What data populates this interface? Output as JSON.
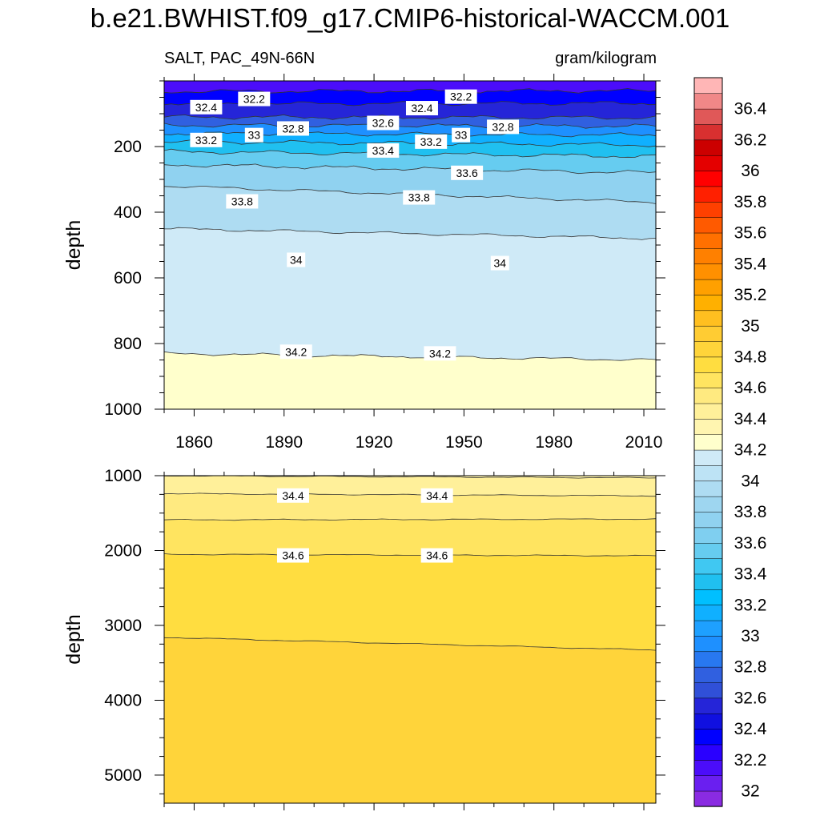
{
  "figure": {
    "title": "b.e21.BWHIST.f09_g17.CMIP6-historical-WACCM.001",
    "left_string": "SALT, PAC_49N-66N",
    "right_string": "gram/kilogram"
  },
  "chart_data": [
    {
      "type": "contour",
      "panel": "upper",
      "variable": "SALT",
      "units": "gram/kilogram",
      "x": {
        "range": [
          1850,
          2014
        ],
        "ticks": [
          1860,
          1890,
          1920,
          1950,
          1980,
          2010
        ]
      },
      "y": {
        "label": "depth",
        "range": [
          0,
          1000
        ],
        "reversed": true,
        "ticks": [
          200,
          400,
          600,
          800,
          1000
        ]
      },
      "contour_lines": [
        {
          "level": 32.2,
          "depth_start": 32,
          "depth_end": 30
        },
        {
          "level": 32.4,
          "depth_start": 70,
          "depth_end": 68
        },
        {
          "level": 32.6,
          "depth_start": 110,
          "depth_end": 112
        },
        {
          "level": 32.8,
          "depth_start": 135,
          "depth_end": 138
        },
        {
          "level": 33.0,
          "depth_start": 160,
          "depth_end": 165
        },
        {
          "level": 33.2,
          "depth_start": 185,
          "depth_end": 195
        },
        {
          "level": 33.4,
          "depth_start": 215,
          "depth_end": 230
        },
        {
          "level": 33.6,
          "depth_start": 255,
          "depth_end": 280
        },
        {
          "level": 33.8,
          "depth_start": 320,
          "depth_end": 370
        },
        {
          "level": 34.0,
          "depth_start": 450,
          "depth_end": 480
        },
        {
          "level": 34.2,
          "depth_start": 830,
          "depth_end": 850
        }
      ],
      "contour_labels": [
        {
          "text": "32.2",
          "x": 1880,
          "depth": 55
        },
        {
          "text": "32.4",
          "x": 1864,
          "depth": 80
        },
        {
          "text": "32.2",
          "x": 1949,
          "depth": 48
        },
        {
          "text": "32.4",
          "x": 1936,
          "depth": 83
        },
        {
          "text": "32.6",
          "x": 1923,
          "depth": 128
        },
        {
          "text": "32.8",
          "x": 1893,
          "depth": 145
        },
        {
          "text": "32.8",
          "x": 1963,
          "depth": 140
        },
        {
          "text": "33",
          "x": 1880,
          "depth": 165
        },
        {
          "text": "33",
          "x": 1949,
          "depth": 165
        },
        {
          "text": "33.2",
          "x": 1864,
          "depth": 180
        },
        {
          "text": "33.2",
          "x": 1939,
          "depth": 185
        },
        {
          "text": "33.4",
          "x": 1923,
          "depth": 212
        },
        {
          "text": "33.6",
          "x": 1951,
          "depth": 280
        },
        {
          "text": "33.8",
          "x": 1876,
          "depth": 367
        },
        {
          "text": "33.8",
          "x": 1935,
          "depth": 355
        },
        {
          "text": "34",
          "x": 1894,
          "depth": 545
        },
        {
          "text": "34",
          "x": 1962,
          "depth": 555
        },
        {
          "text": "34.2",
          "x": 1894,
          "depth": 825
        },
        {
          "text": "34.2",
          "x": 1942,
          "depth": 830
        }
      ]
    },
    {
      "type": "contour",
      "panel": "lower",
      "variable": "SALT",
      "units": "gram/kilogram",
      "x": {
        "range": [
          1850,
          2014
        ],
        "ticks": [
          1860,
          1890,
          1920,
          1950,
          1980,
          2010
        ]
      },
      "y": {
        "label": "depth",
        "range": [
          1000,
          5375
        ],
        "reversed": true,
        "ticks": [
          1000,
          2000,
          3000,
          4000,
          5000
        ]
      },
      "contour_lines": [
        {
          "level": 34.4,
          "depth_start": 1000,
          "depth_end": 1030
        },
        {
          "level": 34.4,
          "depth_start": 1240,
          "depth_end": 1270
        },
        {
          "level": 34.6,
          "depth_start": 1590,
          "depth_end": 1580
        },
        {
          "level": 34.6,
          "depth_start": 2050,
          "depth_end": 2070
        },
        {
          "level": 34.8,
          "depth_start": 3160,
          "depth_end": 3330
        }
      ],
      "contour_labels": [
        {
          "text": "34.4",
          "x": 1893,
          "depth": 1265
        },
        {
          "text": "34.4",
          "x": 1941,
          "depth": 1265
        },
        {
          "text": "34.6",
          "x": 1893,
          "depth": 2065
        },
        {
          "text": "34.6",
          "x": 1941,
          "depth": 2065
        }
      ]
    }
  ],
  "colorbar": {
    "levels": [
      32,
      32.1,
      32.2,
      32.3,
      32.4,
      32.5,
      32.6,
      32.7,
      32.8,
      32.9,
      33,
      33.1,
      33.2,
      33.3,
      33.4,
      33.5,
      33.6,
      33.7,
      33.8,
      33.9,
      34,
      34.1,
      34.2,
      34.3,
      34.4,
      34.5,
      34.6,
      34.7,
      34.8,
      34.9,
      35,
      35.1,
      35.2,
      35.3,
      35.4,
      35.5,
      35.6,
      35.7,
      35.8,
      35.9,
      36,
      36.1,
      36.2,
      36.3,
      36.4,
      36.5
    ],
    "labels": [
      "32",
      "32.2",
      "32.4",
      "32.6",
      "32.8",
      "33",
      "33.2",
      "33.4",
      "33.6",
      "33.8",
      "34",
      "34.2",
      "34.4",
      "34.6",
      "34.8",
      "35",
      "35.2",
      "35.4",
      "35.6",
      "35.8",
      "36",
      "36.2",
      "36.4"
    ],
    "colors": [
      "#8a2be2",
      "#6a1ff0",
      "#4b0dfa",
      "#2a00ff",
      "#0000ff",
      "#1010e0",
      "#2525d8",
      "#3050d8",
      "#3060e0",
      "#2878f0",
      "#1e90ff",
      "#1ea0ff",
      "#10b0ff",
      "#00bfff",
      "#20c0f0",
      "#40c8f2",
      "#66ccf0",
      "#7fcff0",
      "#90d2f0",
      "#9ed6f0",
      "#aedcf2",
      "#bde3f5",
      "#cfeaf7",
      "#ffffcc",
      "#fff5b0",
      "#fff09a",
      "#ffea80",
      "#ffe460",
      "#ffdd40",
      "#ffd43a",
      "#ffcc33",
      "#ffbf20",
      "#ffb000",
      "#ffa000",
      "#ff9000",
      "#ff8000",
      "#ff7000",
      "#ff5a00",
      "#ff4000",
      "#ff2000",
      "#ff0000",
      "#e40000",
      "#cc0000",
      "#d83030",
      "#e05858",
      "#f08888",
      "#ffb6b6"
    ]
  }
}
